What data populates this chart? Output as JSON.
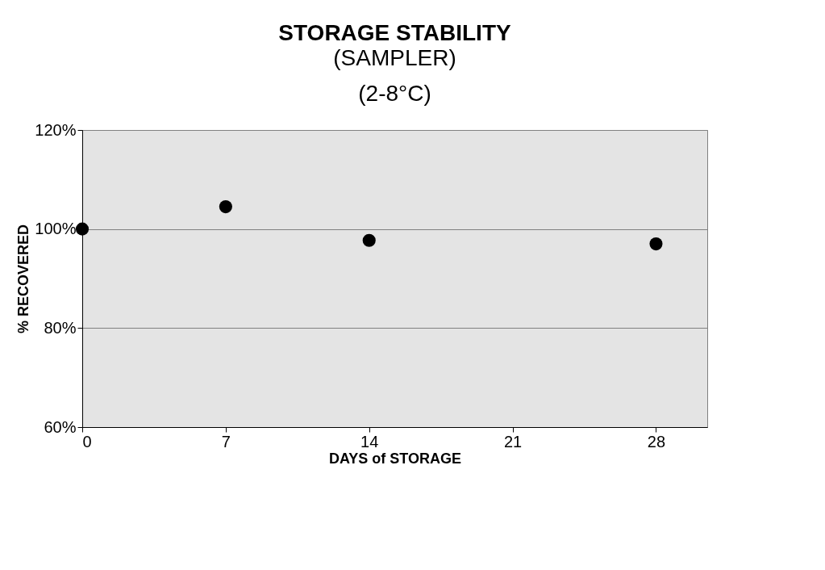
{
  "chart_data": {
    "type": "scatter",
    "title": "STORAGE STABILITY",
    "subtitle": [
      "(SAMPLER)",
      "(2-8°C)"
    ],
    "xlabel": "DAYS of STORAGE",
    "ylabel": "% RECOVERED",
    "x": [
      0,
      7,
      14,
      28
    ],
    "series": [
      {
        "color": "#000000",
        "values": [
          100,
          104.5,
          97.7,
          97.0
        ]
      }
    ],
    "xlim": [
      0,
      30.5
    ],
    "xticks": [
      0,
      7,
      14,
      21,
      28
    ],
    "ylim": [
      60,
      120
    ],
    "yticks": [
      {
        "value": 60,
        "label": "60%"
      },
      {
        "value": 80,
        "label": "80%"
      },
      {
        "value": 100,
        "label": "100%"
      },
      {
        "value": 120,
        "label": "120%"
      }
    ],
    "grid": "y",
    "marker": "circle",
    "legend": false
  }
}
